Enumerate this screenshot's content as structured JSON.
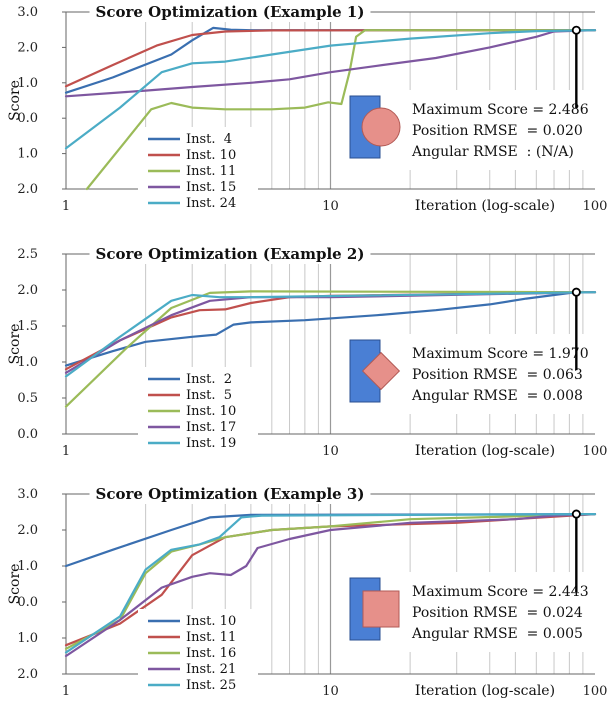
{
  "chart_data": [
    {
      "type": "line",
      "title": "Score Optimization (Example 1)",
      "xlabel": "Iteration (log-scale)",
      "ylabel": "Score",
      "xscale": "log",
      "xlim": [
        1,
        100
      ],
      "ylim": [
        -2.0,
        3.0
      ],
      "xticks": [
        "1",
        "10",
        "100"
      ],
      "yticks": [
        {
          "value": 3.0,
          "label": "3.0",
          "color": "#222222"
        },
        {
          "value": 2.0,
          "label": "2.0",
          "color": "#222222"
        },
        {
          "value": 1.0,
          "label": "1.0",
          "color": "#222222"
        },
        {
          "value": 0.0,
          "label": "0.0",
          "color": "#222222"
        },
        {
          "value": -1.0,
          "label": "1.0",
          "color": "#c0392b"
        },
        {
          "value": -2.0,
          "label": "2.0",
          "color": "#c0392b"
        }
      ],
      "grid": "vertical minor gridlines",
      "legend_position": "lower-left",
      "series": [
        {
          "name": "Inst.  4",
          "color": "#3a6fb0",
          "points": [
            [
              1,
              0.72
            ],
            [
              1.5,
              1.15
            ],
            [
              2.5,
              1.8
            ],
            [
              3,
              2.2
            ],
            [
              3.6,
              2.55
            ],
            [
              4.2,
              2.5
            ],
            [
              5,
              2.486
            ],
            [
              100,
              2.486
            ]
          ]
        },
        {
          "name": "Inst. 10",
          "color": "#c0504d",
          "points": [
            [
              1,
              0.9
            ],
            [
              1.5,
              1.5
            ],
            [
              2.2,
              2.05
            ],
            [
              3,
              2.35
            ],
            [
              4,
              2.45
            ],
            [
              6,
              2.48
            ],
            [
              100,
              2.486
            ]
          ]
        },
        {
          "name": "Inst. 11",
          "color": "#9bbb59",
          "points": [
            [
              1.2,
              -2.0
            ],
            [
              1.7,
              -0.6
            ],
            [
              2.1,
              0.25
            ],
            [
              2.5,
              0.43
            ],
            [
              3,
              0.3
            ],
            [
              4,
              0.25
            ],
            [
              6,
              0.25
            ],
            [
              8,
              0.3
            ],
            [
              9.8,
              0.45
            ],
            [
              11,
              0.4
            ],
            [
              11.8,
              1.3
            ],
            [
              12.5,
              2.3
            ],
            [
              13.5,
              2.486
            ],
            [
              100,
              2.486
            ]
          ]
        },
        {
          "name": "Inst. 15",
          "color": "#7e57a0",
          "points": [
            [
              1,
              0.62
            ],
            [
              2,
              0.78
            ],
            [
              3,
              0.88
            ],
            [
              5,
              1.0
            ],
            [
              7,
              1.1
            ],
            [
              10,
              1.3
            ],
            [
              15,
              1.48
            ],
            [
              25,
              1.7
            ],
            [
              40,
              2.0
            ],
            [
              60,
              2.3
            ],
            [
              70,
              2.45
            ],
            [
              100,
              2.486
            ]
          ]
        },
        {
          "name": "Inst. 24",
          "color": "#4bacc6",
          "points": [
            [
              1,
              -0.85
            ],
            [
              1.6,
              0.3
            ],
            [
              2.3,
              1.3
            ],
            [
              3,
              1.55
            ],
            [
              4,
              1.6
            ],
            [
              6,
              1.8
            ],
            [
              10,
              2.05
            ],
            [
              20,
              2.25
            ],
            [
              40,
              2.4
            ],
            [
              60,
              2.46
            ],
            [
              100,
              2.486
            ]
          ]
        }
      ],
      "annotation": {
        "lines": [
          "Maximum Score = 2.486",
          "Position RMSE  = 0.020",
          "Angular RMSE  : (N/A)"
        ],
        "marker_x": 85,
        "marker_y": 2.486,
        "shape": "circle"
      }
    },
    {
      "type": "line",
      "title": "Score Optimization (Example 2)",
      "xlabel": "Iteration (log-scale)",
      "ylabel": "Score",
      "xscale": "log",
      "xlim": [
        1,
        100
      ],
      "ylim": [
        0.0,
        2.5
      ],
      "xticks": [
        "1",
        "10",
        "100"
      ],
      "yticks": [
        {
          "value": 2.5,
          "label": "2.5",
          "color": "#222222"
        },
        {
          "value": 2.0,
          "label": "2.0",
          "color": "#222222"
        },
        {
          "value": 1.5,
          "label": "1.5",
          "color": "#222222"
        },
        {
          "value": 1.0,
          "label": "1.0",
          "color": "#222222"
        },
        {
          "value": 0.5,
          "label": "0.5",
          "color": "#222222"
        },
        {
          "value": 0.0,
          "label": "0.0",
          "color": "#222222"
        }
      ],
      "grid": "vertical minor gridlines",
      "legend_position": "lower-left",
      "series": [
        {
          "name": "Inst.  2",
          "color": "#3a6fb0",
          "points": [
            [
              1,
              0.95
            ],
            [
              1.5,
              1.15
            ],
            [
              2,
              1.28
            ],
            [
              3,
              1.35
            ],
            [
              3.7,
              1.38
            ],
            [
              4.3,
              1.52
            ],
            [
              5,
              1.55
            ],
            [
              8,
              1.58
            ],
            [
              15,
              1.65
            ],
            [
              25,
              1.72
            ],
            [
              40,
              1.8
            ],
            [
              55,
              1.88
            ],
            [
              70,
              1.93
            ],
            [
              85,
              1.97
            ],
            [
              100,
              1.97
            ]
          ]
        },
        {
          "name": "Inst.  5",
          "color": "#c0504d",
          "points": [
            [
              1,
              0.9
            ],
            [
              1.6,
              1.3
            ],
            [
              2.5,
              1.62
            ],
            [
              3.2,
              1.72
            ],
            [
              4,
              1.73
            ],
            [
              5,
              1.82
            ],
            [
              7,
              1.9
            ],
            [
              10,
              1.92
            ],
            [
              100,
              1.97
            ]
          ]
        },
        {
          "name": "Inst. 10",
          "color": "#9bbb59",
          "points": [
            [
              1,
              0.38
            ],
            [
              1.7,
              1.2
            ],
            [
              2.5,
              1.75
            ],
            [
              3.5,
              1.96
            ],
            [
              5,
              1.98
            ],
            [
              100,
              1.97
            ]
          ]
        },
        {
          "name": "Inst. 17",
          "color": "#7e57a0",
          "points": [
            [
              1,
              0.85
            ],
            [
              1.6,
              1.3
            ],
            [
              2.5,
              1.65
            ],
            [
              3.5,
              1.85
            ],
            [
              5,
              1.9
            ],
            [
              10,
              1.9
            ],
            [
              100,
              1.97
            ]
          ]
        },
        {
          "name": "Inst. 19",
          "color": "#4bacc6",
          "points": [
            [
              1,
              0.8
            ],
            [
              1.6,
              1.35
            ],
            [
              2.5,
              1.85
            ],
            [
              3,
              1.93
            ],
            [
              3.8,
              1.9
            ],
            [
              5,
              1.9
            ],
            [
              100,
              1.97
            ]
          ]
        }
      ],
      "annotation": {
        "lines": [
          "Maximum Score = 1.970",
          "Position RMSE  = 0.063",
          "Angular RMSE  = 0.008"
        ],
        "marker_x": 85,
        "marker_y": 1.97,
        "shape": "diamond"
      }
    },
    {
      "type": "line",
      "title": "Score Optimization (Example 3)",
      "xlabel": "Iteration (log-scale)",
      "ylabel": "Score",
      "xscale": "log",
      "xlim": [
        1,
        100
      ],
      "ylim": [
        -2.0,
        3.0
      ],
      "xticks": [
        "1",
        "10",
        "100"
      ],
      "yticks": [
        {
          "value": 3.0,
          "label": "3.0",
          "color": "#222222"
        },
        {
          "value": 2.0,
          "label": "2.0",
          "color": "#222222"
        },
        {
          "value": 1.0,
          "label": "1.0",
          "color": "#222222"
        },
        {
          "value": 0.0,
          "label": "0.0",
          "color": "#222222"
        },
        {
          "value": -1.0,
          "label": "1.0",
          "color": "#c0392b"
        },
        {
          "value": -2.0,
          "label": "2.0",
          "color": "#c0392b"
        }
      ],
      "grid": "vertical minor gridlines",
      "legend_position": "lower-left",
      "series": [
        {
          "name": "Inst. 10",
          "color": "#3a6fb0",
          "points": [
            [
              1,
              1.0
            ],
            [
              1.5,
              1.45
            ],
            [
              2.5,
              2.0
            ],
            [
              3.5,
              2.35
            ],
            [
              5,
              2.42
            ],
            [
              100,
              2.443
            ]
          ]
        },
        {
          "name": "Inst. 11",
          "color": "#c0504d",
          "points": [
            [
              1,
              -1.2
            ],
            [
              1.6,
              -0.6
            ],
            [
              2.3,
              0.2
            ],
            [
              3,
              1.3
            ],
            [
              4,
              1.8
            ],
            [
              6,
              2.0
            ],
            [
              10,
              2.1
            ],
            [
              30,
              2.2
            ],
            [
              100,
              2.443
            ]
          ]
        },
        {
          "name": "Inst. 16",
          "color": "#9bbb59",
          "points": [
            [
              1,
              -1.3
            ],
            [
              1.6,
              -0.5
            ],
            [
              2,
              0.8
            ],
            [
              2.5,
              1.4
            ],
            [
              3.2,
              1.6
            ],
            [
              4,
              1.8
            ],
            [
              6,
              2.0
            ],
            [
              10,
              2.1
            ],
            [
              20,
              2.3
            ],
            [
              100,
              2.443
            ]
          ]
        },
        {
          "name": "Inst. 21",
          "color": "#7e57a0",
          "points": [
            [
              1,
              -1.5
            ],
            [
              1.6,
              -0.5
            ],
            [
              2.3,
              0.4
            ],
            [
              3,
              0.7
            ],
            [
              3.5,
              0.8
            ],
            [
              4.2,
              0.75
            ],
            [
              4.8,
              1.0
            ],
            [
              5.3,
              1.5
            ],
            [
              7,
              1.75
            ],
            [
              10,
              2.0
            ],
            [
              20,
              2.2
            ],
            [
              50,
              2.3
            ],
            [
              70,
              2.4
            ],
            [
              100,
              2.443
            ]
          ]
        },
        {
          "name": "Inst. 25",
          "color": "#4bacc6",
          "points": [
            [
              1,
              -1.4
            ],
            [
              1.6,
              -0.4
            ],
            [
              2,
              0.9
            ],
            [
              2.5,
              1.45
            ],
            [
              3.2,
              1.6
            ],
            [
              3.8,
              1.8
            ],
            [
              4.6,
              2.35
            ],
            [
              5.5,
              2.4
            ],
            [
              100,
              2.443
            ]
          ]
        }
      ],
      "annotation": {
        "lines": [
          "Maximum Score = 2.443",
          "Position RMSE  = 0.024",
          "Angular RMSE  = 0.005"
        ],
        "marker_x": 85,
        "marker_y": 2.443,
        "shape": "square"
      }
    }
  ]
}
